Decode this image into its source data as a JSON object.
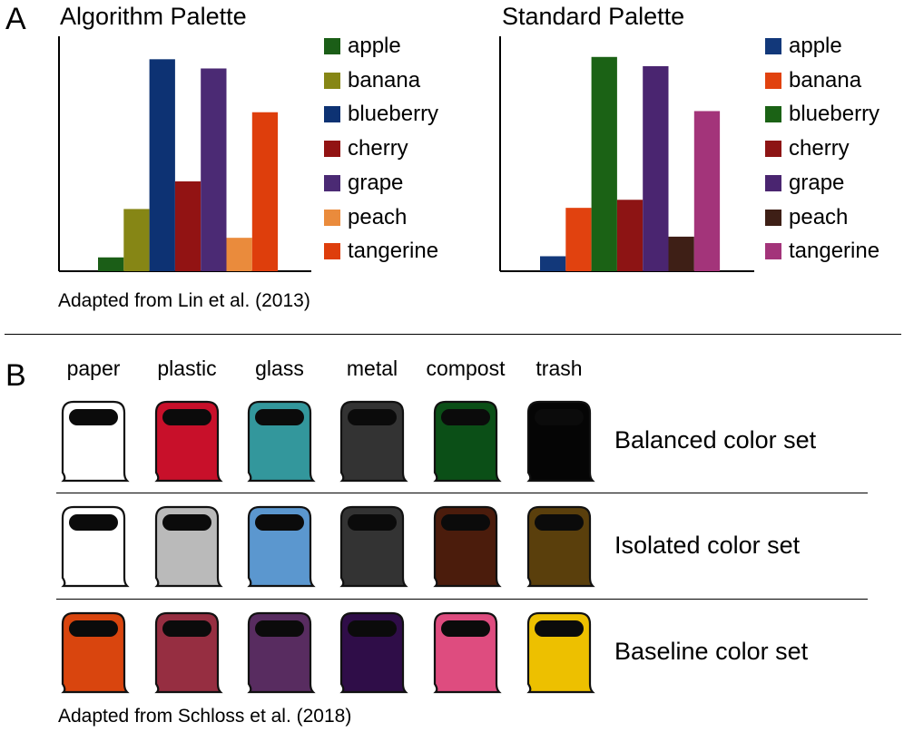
{
  "panel_a": {
    "letter": "A",
    "caption": "Adapted from Lin et al. (2013)"
  },
  "panel_b": {
    "letter": "B",
    "caption": "Adapted from Schloss et al. (2018)",
    "categories": [
      "paper",
      "plastic",
      "glass",
      "metal",
      "compost",
      "trash"
    ],
    "sets": [
      {
        "label": "Balanced color set",
        "colors": [
          "#ffffff",
          "#c8102a",
          "#33979c",
          "#333333",
          "#0b4f17",
          "#050505"
        ]
      },
      {
        "label": "Isolated color set",
        "colors": [
          "#ffffff",
          "#bababa",
          "#5b97cf",
          "#333333",
          "#4b1c0c",
          "#5a3f0c"
        ]
      },
      {
        "label": "Baseline color set",
        "colors": [
          "#d9450e",
          "#962e41",
          "#582c60",
          "#2f0d48",
          "#de4c7f",
          "#edc000"
        ]
      }
    ]
  },
  "chart_data": [
    {
      "type": "bar",
      "title": "Algorithm Palette",
      "categories": [
        "apple",
        "banana",
        "blueberry",
        "cherry",
        "grape",
        "peach",
        "tangerine"
      ],
      "values": [
        1.2,
        5.4,
        18.4,
        7.8,
        17.6,
        2.9,
        13.8
      ],
      "colors": [
        "#1b5e17",
        "#868615",
        "#0d3273",
        "#921313",
        "#4b2a74",
        "#ea8b3c",
        "#de3e0c"
      ],
      "legend": "right",
      "ylim": [
        0,
        20
      ],
      "grid": false
    },
    {
      "type": "bar",
      "title": "Standard Palette",
      "categories": [
        "apple",
        "banana",
        "blueberry",
        "cherry",
        "grape",
        "peach",
        "tangerine"
      ],
      "values": [
        1.3,
        5.5,
        18.6,
        6.2,
        17.8,
        3.0,
        13.9
      ],
      "colors": [
        "#12387a",
        "#e1420f",
        "#1b6215",
        "#8d1414",
        "#4a2570",
        "#3e1f16",
        "#a3347a"
      ],
      "legend": "right",
      "ylim": [
        0,
        20
      ],
      "grid": false
    }
  ]
}
